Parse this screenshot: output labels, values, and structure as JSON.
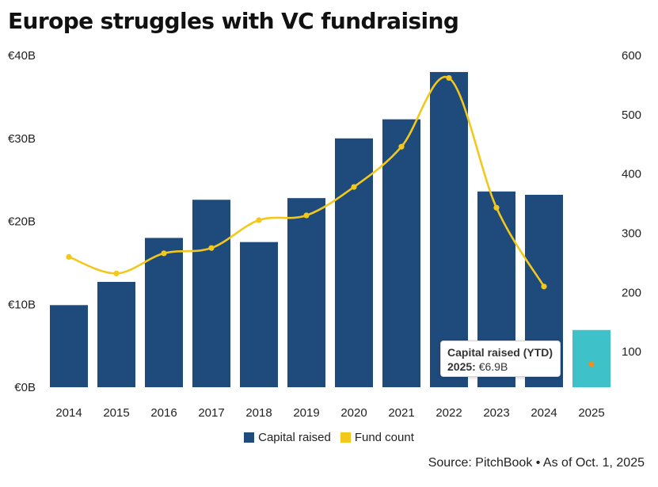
{
  "chart_data": {
    "type": "bar",
    "title": "Europe struggles with VC fundraising",
    "categories": [
      "2014",
      "2015",
      "2016",
      "2017",
      "2018",
      "2019",
      "2020",
      "2021",
      "2022",
      "2023",
      "2024",
      "2025"
    ],
    "series": [
      {
        "name": "Capital raised",
        "axis": "left",
        "unit": "€B",
        "values": [
          9.9,
          12.7,
          18.0,
          22.6,
          17.5,
          22.8,
          30.0,
          32.3,
          38.0,
          23.6,
          23.2,
          6.9
        ]
      },
      {
        "name": "Fund count",
        "axis": "right",
        "type": "line",
        "values": [
          260,
          232,
          266,
          275,
          322,
          330,
          378,
          446,
          562,
          343,
          210,
          null
        ]
      }
    ],
    "y_left": {
      "min": 0,
      "max": 40,
      "ticks": [
        0,
        10,
        20,
        30,
        40
      ],
      "tick_labels": [
        "€0B",
        "€10B",
        "€20B",
        "€30B",
        "€40B"
      ]
    },
    "y_right": {
      "min": 40,
      "max": 600,
      "ticks": [
        100,
        200,
        300,
        400,
        500,
        600
      ],
      "tick_labels": [
        "100",
        "200",
        "300",
        "400",
        "500",
        "600"
      ]
    },
    "highlight_index": 11,
    "grid": false,
    "legend_position": "bottom-center"
  },
  "colors": {
    "bar": "#1f4a7c",
    "bar_highlight": "#3ec1c9",
    "line": "#f2c81c",
    "marker_highlight": "#f28c1e",
    "text": "#222222"
  },
  "legend": {
    "capital": "Capital raised",
    "fund": "Fund count"
  },
  "tooltip": {
    "title": "Capital raised (YTD)",
    "year_label": "2025:",
    "value": "€6.9B"
  },
  "source": "Source: PitchBook • As of Oct. 1, 2025"
}
